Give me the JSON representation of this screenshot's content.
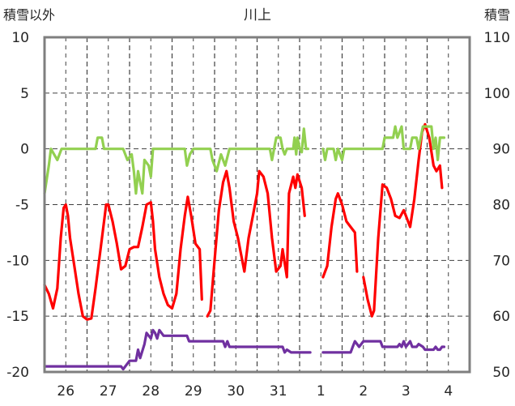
{
  "chart_data": {
    "type": "line",
    "title": "川上",
    "ylabel_left": "積雪以外",
    "ylabel_right": "積雪",
    "ylim_left": [
      -20,
      10
    ],
    "ylim_right": [
      50,
      110
    ],
    "yticks_left": [
      "10",
      "5",
      "0",
      "-5",
      "-10",
      "-15",
      "-20"
    ],
    "yticks_right": [
      "110",
      "100",
      "90",
      "80",
      "70",
      "60",
      "50"
    ],
    "categories": [
      "26",
      "27",
      "28",
      "29",
      "30",
      "31",
      "1",
      "2",
      "3",
      "4"
    ],
    "x_range_days": [
      0,
      10
    ],
    "grid": true,
    "colors": {
      "temperature": "#ff0000",
      "sunshine": "#92d050",
      "snow_depth": "#7030a0",
      "grid": "#404040",
      "frame": "#7f7f7f"
    },
    "series": [
      {
        "axis": "left",
        "color": "#ff0000",
        "segments": [
          [
            [
              0.0,
              -12.2
            ],
            [
              0.1,
              -13.0
            ],
            [
              0.2,
              -14.3
            ],
            [
              0.3,
              -12.5
            ],
            [
              0.38,
              -8.0
            ],
            [
              0.45,
              -5.3
            ],
            [
              0.5,
              -5.0
            ],
            [
              0.55,
              -6.0
            ],
            [
              0.6,
              -8.0
            ],
            [
              0.7,
              -10.5
            ],
            [
              0.8,
              -13.0
            ],
            [
              0.9,
              -15.0
            ],
            [
              1.0,
              -15.3
            ],
            [
              1.1,
              -15.2
            ],
            [
              1.2,
              -12.5
            ],
            [
              1.35,
              -8.0
            ],
            [
              1.45,
              -5.0
            ],
            [
              1.5,
              -5.0
            ],
            [
              1.6,
              -6.5
            ],
            [
              1.7,
              -8.5
            ],
            [
              1.8,
              -10.8
            ],
            [
              1.9,
              -10.5
            ],
            [
              2.0,
              -9.0
            ],
            [
              2.1,
              -8.8
            ],
            [
              2.2,
              -8.8
            ],
            [
              2.3,
              -7.0
            ],
            [
              2.4,
              -5.0
            ],
            [
              2.5,
              -4.8
            ],
            [
              2.55,
              -6.5
            ],
            [
              2.6,
              -9.0
            ],
            [
              2.7,
              -11.5
            ],
            [
              2.8,
              -13.0
            ],
            [
              2.9,
              -14.0
            ],
            [
              3.0,
              -14.3
            ],
            [
              3.1,
              -13.0
            ],
            [
              3.2,
              -9.0
            ],
            [
              3.3,
              -6.0
            ],
            [
              3.37,
              -4.3
            ],
            [
              3.45,
              -6.0
            ],
            [
              3.55,
              -8.5
            ],
            [
              3.65,
              -9.0
            ],
            [
              3.7,
              -13.5
            ]
          ],
          [
            [
              3.83,
              -15.0
            ],
            [
              3.9,
              -14.5
            ],
            [
              4.0,
              -10.0
            ],
            [
              4.1,
              -5.5
            ],
            [
              4.2,
              -3.0
            ],
            [
              4.28,
              -2.0
            ],
            [
              4.35,
              -3.5
            ],
            [
              4.45,
              -6.5
            ],
            [
              4.55,
              -8.0
            ],
            [
              4.6,
              -9.0
            ],
            [
              4.7,
              -11.0
            ],
            [
              4.8,
              -8.0
            ],
            [
              4.9,
              -6.0
            ],
            [
              5.0,
              -4.0
            ],
            [
              5.05,
              -2.0
            ],
            [
              5.15,
              -2.5
            ],
            [
              5.25,
              -4.0
            ],
            [
              5.35,
              -8.0
            ],
            [
              5.45,
              -11.0
            ],
            [
              5.55,
              -10.5
            ],
            [
              5.6,
              -9.0
            ],
            [
              5.7,
              -11.5
            ],
            [
              5.75,
              -4.0
            ],
            [
              5.85,
              -2.5
            ],
            [
              5.9,
              -3.5
            ],
            [
              5.95,
              -2.3
            ],
            [
              6.05,
              -3.5
            ],
            [
              6.12,
              -6.0
            ]
          ],
          [
            [
              6.55,
              -11.5
            ],
            [
              6.65,
              -10.5
            ],
            [
              6.75,
              -7.0
            ],
            [
              6.85,
              -4.5
            ],
            [
              6.9,
              -4.0
            ],
            [
              7.0,
              -5.0
            ],
            [
              7.1,
              -6.5
            ],
            [
              7.2,
              -7.0
            ],
            [
              7.3,
              -7.5
            ],
            [
              7.35,
              -11.0
            ]
          ],
          [
            [
              7.5,
              -11.5
            ],
            [
              7.6,
              -13.5
            ],
            [
              7.7,
              -15.0
            ],
            [
              7.75,
              -14.5
            ],
            [
              7.85,
              -8.0
            ],
            [
              7.95,
              -3.2
            ],
            [
              8.05,
              -3.5
            ],
            [
              8.15,
              -4.5
            ],
            [
              8.25,
              -6.0
            ],
            [
              8.35,
              -6.2
            ],
            [
              8.45,
              -5.5
            ],
            [
              8.5,
              -6.0
            ],
            [
              8.6,
              -7.0
            ],
            [
              8.7,
              -4.5
            ],
            [
              8.8,
              -1.0
            ],
            [
              8.88,
              1.5
            ],
            [
              8.95,
              2.2
            ],
            [
              9.05,
              1.0
            ],
            [
              9.15,
              -1.5
            ],
            [
              9.22,
              -2.0
            ],
            [
              9.3,
              -1.5
            ],
            [
              9.35,
              -3.5
            ]
          ]
        ]
      },
      {
        "axis": "left",
        "color": "#92d050",
        "segments": [
          [
            [
              0.0,
              -4.0
            ],
            [
              0.1,
              -1.5
            ],
            [
              0.15,
              0.0
            ],
            [
              0.3,
              -1.0
            ],
            [
              0.4,
              0.0
            ],
            [
              1.2,
              0.0
            ],
            [
              1.25,
              1.0
            ],
            [
              1.35,
              1.0
            ],
            [
              1.4,
              0.0
            ],
            [
              1.85,
              0.0
            ],
            [
              1.95,
              -1.0
            ],
            [
              2.05,
              -0.5
            ],
            [
              2.1,
              -2.0
            ],
            [
              2.15,
              -4.0
            ],
            [
              2.2,
              -2.0
            ],
            [
              2.3,
              -4.0
            ],
            [
              2.35,
              -1.0
            ],
            [
              2.45,
              -1.5
            ],
            [
              2.5,
              -2.5
            ],
            [
              2.55,
              0.0
            ],
            [
              3.3,
              0.0
            ],
            [
              3.35,
              -1.5
            ],
            [
              3.42,
              -0.5
            ],
            [
              3.5,
              0.0
            ],
            [
              3.9,
              0.0
            ],
            [
              3.95,
              -1.0
            ],
            [
              4.05,
              -2.0
            ],
            [
              4.15,
              -0.5
            ],
            [
              4.25,
              -1.5
            ],
            [
              4.35,
              0.0
            ],
            [
              5.3,
              0.0
            ],
            [
              5.35,
              -1.0
            ],
            [
              5.4,
              0.0
            ],
            [
              5.45,
              1.0
            ],
            [
              5.55,
              1.0
            ],
            [
              5.6,
              0.0
            ],
            [
              5.65,
              -0.5
            ],
            [
              5.7,
              0.0
            ],
            [
              5.85,
              0.0
            ],
            [
              5.88,
              1.0
            ],
            [
              5.92,
              -0.5
            ],
            [
              5.95,
              1.0
            ],
            [
              6.0,
              0.0
            ],
            [
              6.05,
              -0.3
            ],
            [
              6.1,
              1.8
            ],
            [
              6.15,
              0.0
            ],
            [
              6.2,
              0.0
            ]
          ],
          [
            [
              6.55,
              0.0
            ],
            [
              6.6,
              -1.0
            ],
            [
              6.65,
              0.0
            ],
            [
              6.8,
              0.0
            ],
            [
              6.85,
              -1.0
            ],
            [
              6.9,
              0.0
            ],
            [
              6.95,
              -0.5
            ],
            [
              7.0,
              -1.0
            ],
            [
              7.05,
              0.0
            ],
            [
              7.95,
              0.0
            ],
            [
              8.0,
              1.0
            ],
            [
              8.2,
              1.0
            ],
            [
              8.25,
              2.0
            ],
            [
              8.3,
              1.0
            ],
            [
              8.4,
              2.0
            ],
            [
              8.45,
              0.0
            ],
            [
              8.6,
              0.0
            ],
            [
              8.65,
              1.0
            ],
            [
              8.75,
              1.0
            ],
            [
              8.8,
              0.0
            ],
            [
              8.85,
              1.0
            ],
            [
              8.9,
              2.0
            ],
            [
              9.1,
              2.0
            ],
            [
              9.15,
              0.0
            ],
            [
              9.2,
              1.0
            ],
            [
              9.25,
              -1.0
            ],
            [
              9.3,
              1.0
            ],
            [
              9.4,
              1.0
            ]
          ]
        ]
      },
      {
        "axis": "right",
        "color": "#7030a0",
        "segments": [
          [
            [
              0.0,
              51.0
            ],
            [
              1.8,
              51.0
            ],
            [
              1.85,
              50.5
            ],
            [
              2.0,
              52.0
            ],
            [
              2.15,
              52.0
            ],
            [
              2.2,
              54.0
            ],
            [
              2.25,
              52.5
            ],
            [
              2.35,
              55.0
            ],
            [
              2.4,
              57.0
            ],
            [
              2.5,
              56.0
            ],
            [
              2.55,
              57.5
            ],
            [
              2.6,
              57.0
            ],
            [
              2.65,
              56.0
            ],
            [
              2.7,
              57.5
            ],
            [
              2.75,
              57.0
            ],
            [
              2.8,
              56.5
            ],
            [
              3.35,
              56.5
            ],
            [
              3.4,
              55.5
            ],
            [
              4.2,
              55.5
            ],
            [
              4.25,
              54.5
            ],
            [
              4.3,
              55.5
            ],
            [
              4.35,
              54.5
            ],
            [
              5.6,
              54.5
            ],
            [
              5.65,
              53.5
            ],
            [
              5.7,
              54.0
            ],
            [
              5.8,
              53.5
            ],
            [
              6.25,
              53.5
            ]
          ],
          [
            [
              6.55,
              53.5
            ],
            [
              7.2,
              53.5
            ],
            [
              7.25,
              54.5
            ],
            [
              7.3,
              55.5
            ],
            [
              7.4,
              54.5
            ],
            [
              7.45,
              55.0
            ],
            [
              7.5,
              55.5
            ],
            [
              7.9,
              55.5
            ],
            [
              7.95,
              54.5
            ],
            [
              8.3,
              54.5
            ],
            [
              8.35,
              55.0
            ],
            [
              8.4,
              54.5
            ],
            [
              8.45,
              55.5
            ],
            [
              8.5,
              54.5
            ],
            [
              8.55,
              55.0
            ],
            [
              8.6,
              55.5
            ],
            [
              8.65,
              54.5
            ],
            [
              8.75,
              54.5
            ],
            [
              8.8,
              55.0
            ],
            [
              8.9,
              54.5
            ],
            [
              8.95,
              54.0
            ],
            [
              9.15,
              54.0
            ],
            [
              9.2,
              54.5
            ],
            [
              9.25,
              54.0
            ],
            [
              9.3,
              54.0
            ],
            [
              9.35,
              54.5
            ],
            [
              9.4,
              54.5
            ]
          ]
        ]
      }
    ]
  }
}
